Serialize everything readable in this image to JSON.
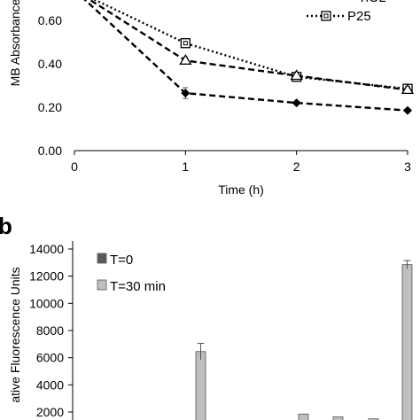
{
  "chart_data": [
    {
      "type": "line",
      "xlabel": "Time (h)",
      "ylabel": "MB Absorbance",
      "x": [
        0,
        1,
        2,
        3
      ],
      "xlim": [
        0,
        3
      ],
      "x_ticks": [
        "0",
        "1",
        "2",
        "3"
      ],
      "ylim": [
        0,
        0.7
      ],
      "y_ticks": [
        "0.00",
        "0.20",
        "0.40",
        "0.60"
      ],
      "grid": false,
      "legend_position": "top-right",
      "series": [
        {
          "name": "P25",
          "marker": "square-open",
          "line": "dotted",
          "values": [
            0.74,
            0.495,
            0.34,
            0.285
          ],
          "errors": [
            null,
            0.02,
            0.02,
            0.02
          ]
        },
        {
          "name": "",
          "marker": "triangle-open",
          "line": "dashed",
          "values": [
            0.74,
            0.415,
            0.345,
            0.28
          ],
          "errors": [
            null,
            0.015,
            0.015,
            0.015
          ]
        },
        {
          "name": "",
          "marker": "diamond-filled",
          "line": "dashed",
          "values": [
            0.74,
            0.265,
            0.22,
            0.185
          ],
          "errors": [
            null,
            0.025,
            0.008,
            0.008
          ]
        }
      ],
      "colors": {
        "line": "#000000"
      }
    },
    {
      "panel_label": "b",
      "type": "bar",
      "ylabel": "ative Fluorescence Units",
      "ylim": [
        0,
        14000
      ],
      "y_ticks": [
        "2000",
        "4000",
        "6000",
        "8000",
        "10000",
        "12000",
        "14000"
      ],
      "grid": false,
      "legend_position": "top-left",
      "series": [
        {
          "name": "T=0",
          "color": "#595959",
          "values": []
        },
        {
          "name": "T=30 min",
          "color": "#bfbfbf",
          "values": [
            6450,
            1850,
            1650,
            1500,
            12850
          ],
          "errors": [
            600,
            0,
            0,
            0,
            300
          ]
        }
      ]
    }
  ]
}
